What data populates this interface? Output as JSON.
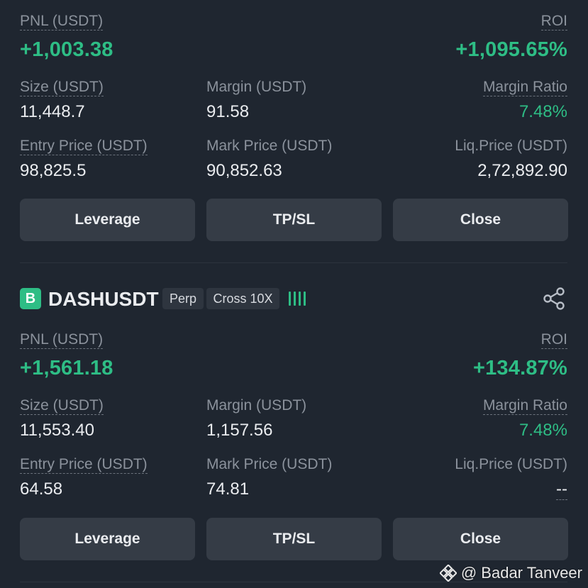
{
  "positions": [
    {
      "pnl_label": "PNL (USDT)",
      "pnl_value": "+1,003.38",
      "roi_label": "ROI",
      "roi_value": "+1,095.65%",
      "size_label": "Size (USDT)",
      "size_value": "11,448.7",
      "margin_label": "Margin (USDT)",
      "margin_value": "91.58",
      "margin_ratio_label": "Margin Ratio",
      "margin_ratio_value": "7.48%",
      "entry_label": "Entry Price (USDT)",
      "entry_value": "98,825.5",
      "mark_label": "Mark Price (USDT)",
      "mark_value": "90,852.63",
      "liq_label": "Liq.Price (USDT)",
      "liq_value": "2,72,892.90",
      "buttons": {
        "leverage": "Leverage",
        "tpsl": "TP/SL",
        "close": "Close"
      }
    },
    {
      "badge": "B",
      "symbol": "DASHUSDT",
      "tag_perp": "Perp",
      "tag_cross": "Cross 10X",
      "pnl_label": "PNL (USDT)",
      "pnl_value": "+1,561.18",
      "roi_label": "ROI",
      "roi_value": "+134.87%",
      "size_label": "Size (USDT)",
      "size_value": "11,553.40",
      "margin_label": "Margin (USDT)",
      "margin_value": "1,157.56",
      "margin_ratio_label": "Margin Ratio",
      "margin_ratio_value": "7.48%",
      "entry_label": "Entry Price (USDT)",
      "entry_value": "64.58",
      "mark_label": "Mark Price (USDT)",
      "mark_value": "74.81",
      "liq_label": "Liq.Price (USDT)",
      "liq_value": "--",
      "buttons": {
        "leverage": "Leverage",
        "tpsl": "TP/SL",
        "close": "Close"
      }
    }
  ],
  "watermark": "@ Badar Tanveer",
  "colors": {
    "positive": "#2ebd85",
    "background": "#1f2630",
    "button": "#353c46"
  },
  "icons": {
    "share": "share-icon",
    "signal": "signal-bars-icon",
    "binance_logo": "binance-logo-icon"
  }
}
